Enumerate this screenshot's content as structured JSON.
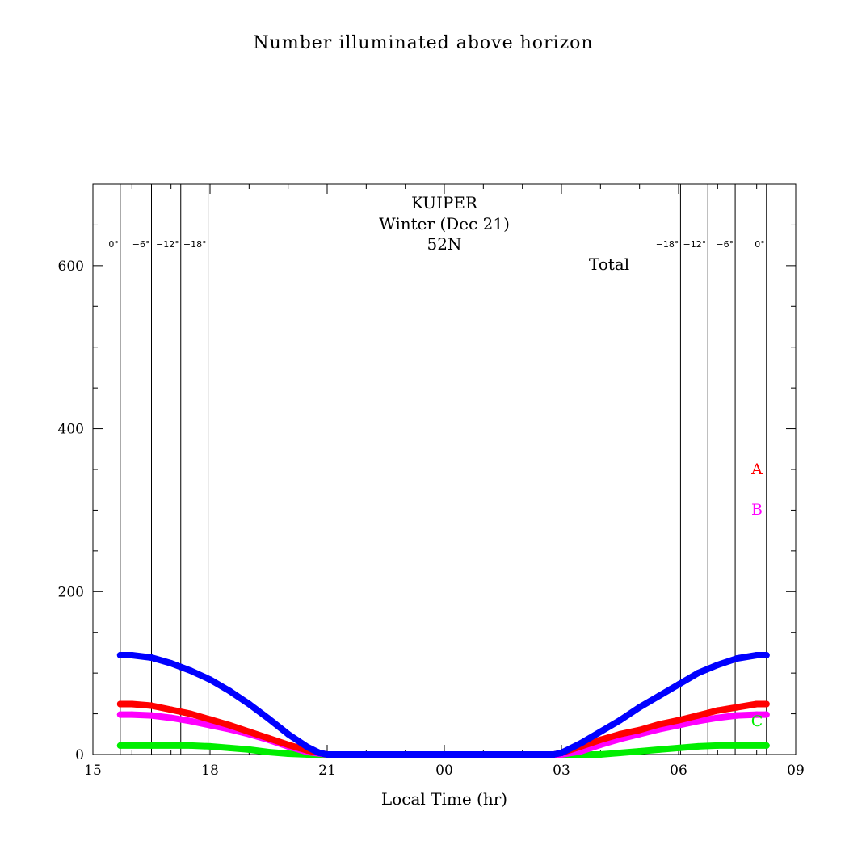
{
  "chart_data": {
    "type": "line",
    "title": "Number illuminated above horizon",
    "annotations": {
      "constellation": "KUIPER",
      "season": "Winter (Dec 21)",
      "latitude": "52N",
      "panel": "Total"
    },
    "xlabel": "Local Time (hr)",
    "ylabel": "",
    "xlim": [
      15,
      33
    ],
    "ylim": [
      0,
      700
    ],
    "x_ticks": [
      {
        "value": 15,
        "label": "15"
      },
      {
        "value": 18,
        "label": "18"
      },
      {
        "value": 21,
        "label": "21"
      },
      {
        "value": 24,
        "label": "00"
      },
      {
        "value": 27,
        "label": "03"
      },
      {
        "value": 30,
        "label": "06"
      },
      {
        "value": 33,
        "label": "09"
      }
    ],
    "y_ticks": [
      0,
      200,
      400,
      600
    ],
    "twilight_lines": [
      {
        "x": 15.7,
        "label": "0°"
      },
      {
        "x": 16.5,
        "label": "−6°"
      },
      {
        "x": 17.25,
        "label": "−12°"
      },
      {
        "x": 17.95,
        "label": "−18°"
      },
      {
        "x": 30.05,
        "label": "−18°"
      },
      {
        "x": 30.75,
        "label": "−12°"
      },
      {
        "x": 31.45,
        "label": "−6°"
      },
      {
        "x": 32.25,
        "label": "0°"
      }
    ],
    "series": [
      {
        "name": "A",
        "color": "#ff0000",
        "x": [
          15.7,
          16.0,
          16.5,
          17.0,
          17.5,
          18.0,
          18.5,
          19.0,
          19.5,
          20.0,
          20.5,
          21.0,
          24.0,
          26.8,
          27.0,
          27.5,
          28.0,
          28.5,
          29.0,
          29.5,
          30.0,
          30.5,
          31.0,
          31.5,
          32.0,
          32.25
        ],
        "values": [
          62,
          62,
          60,
          55,
          50,
          43,
          36,
          28,
          20,
          12,
          5,
          0,
          0,
          0,
          2,
          10,
          18,
          25,
          30,
          37,
          42,
          48,
          54,
          58,
          62,
          62
        ]
      },
      {
        "name": "B",
        "color": "#ff00ff",
        "x": [
          15.7,
          16.0,
          16.5,
          17.0,
          17.5,
          18.0,
          18.5,
          19.0,
          19.5,
          20.0,
          20.5,
          21.0,
          24.0,
          27.0,
          27.5,
          28.0,
          28.5,
          29.0,
          29.5,
          30.0,
          30.5,
          31.0,
          31.5,
          32.0,
          32.25
        ],
        "values": [
          49,
          49,
          48,
          45,
          41,
          36,
          31,
          25,
          18,
          10,
          3,
          0,
          0,
          0,
          4,
          12,
          19,
          25,
          31,
          36,
          41,
          45,
          48,
          49,
          49
        ]
      },
      {
        "name": "C",
        "color": "#00ee00",
        "x": [
          15.7,
          16.5,
          17.5,
          18.0,
          18.5,
          19.0,
          19.5,
          20.0,
          20.5,
          21.0,
          24.0,
          28.0,
          28.5,
          29.0,
          29.5,
          30.0,
          30.5,
          31.0,
          32.25
        ],
        "values": [
          11,
          11,
          11,
          10,
          8,
          6,
          3,
          1,
          0,
          0,
          0,
          0,
          2,
          4,
          6,
          8,
          10,
          11,
          11
        ]
      },
      {
        "name": "Total",
        "color": "#0000ff",
        "x": [
          15.7,
          16.0,
          16.5,
          17.0,
          17.5,
          18.0,
          18.5,
          19.0,
          19.5,
          20.0,
          20.5,
          20.8,
          21.0,
          24.0,
          26.8,
          27.0,
          27.5,
          28.0,
          28.5,
          29.0,
          29.5,
          30.0,
          30.5,
          31.0,
          31.5,
          32.0,
          32.25
        ],
        "values": [
          122,
          122,
          119,
          112,
          103,
          92,
          78,
          62,
          44,
          25,
          9,
          2,
          0,
          0,
          0,
          2,
          14,
          28,
          42,
          58,
          72,
          86,
          100,
          110,
          118,
          122,
          122
        ]
      }
    ],
    "series_labels": [
      "A",
      "B",
      "C"
    ]
  }
}
